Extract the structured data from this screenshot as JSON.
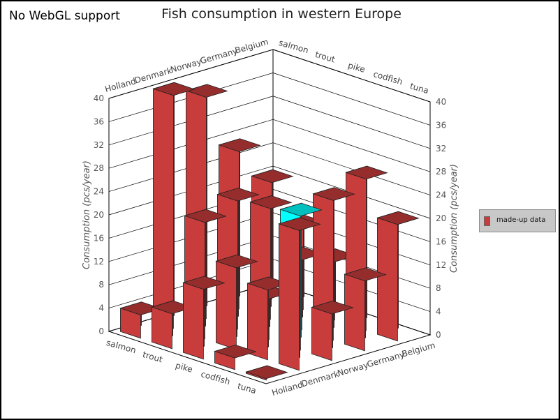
{
  "notice": "No WebGL support",
  "chart_data": {
    "type": "bar3d",
    "title": "Fish consumption in western Europe",
    "zlabel": "Consumption (pcs/year)",
    "zlim": [
      0,
      40
    ],
    "zticks": [
      0,
      4,
      8,
      12,
      16,
      20,
      24,
      28,
      32,
      36,
      40
    ],
    "fish": [
      "salmon",
      "trout",
      "pike",
      "codfish",
      "tuna"
    ],
    "countries": [
      "Holland",
      "Denmark",
      "Norway",
      "Germany",
      "Belgium"
    ],
    "series": [
      {
        "name": "made-up data",
        "values": {
          "Holland": {
            "salmon": 4,
            "trout": 6,
            "pike": 12,
            "codfish": 2,
            "tuna": 0
          },
          "Denmark": {
            "salmon": 40,
            "trout": 20,
            "pike": 14,
            "codfish": 12,
            "tuna": 24
          },
          "Norway": {
            "salmon": 38,
            "trout": 22,
            "pike": 7,
            "codfish": 23,
            "tuna": 8
          },
          "Germany": {
            "salmon": 27,
            "trout": 19,
            "pike": 12,
            "codfish": 24,
            "tuna": 12
          },
          "Belgium": {
            "salmon": 20,
            "trout": 14,
            "pike": 10,
            "codfish": 26,
            "tuna": 20
          }
        }
      }
    ],
    "highlight": {
      "country": "Norway",
      "fish": "codfish"
    },
    "colors": {
      "bar": "#c83c3c",
      "highlight": "#00ffff",
      "edge": "#222222",
      "grid": "#000000"
    },
    "legend_position": "right"
  }
}
